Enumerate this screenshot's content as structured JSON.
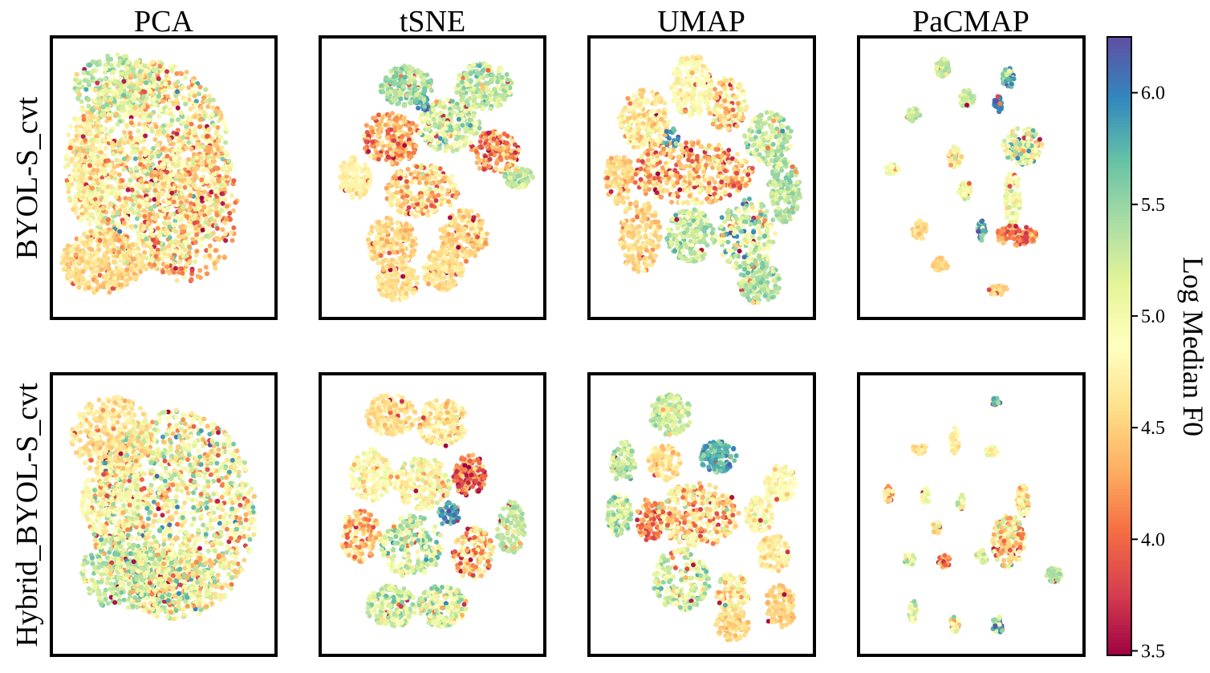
{
  "figure": {
    "column_titles": [
      "PCA",
      "tSNE",
      "UMAP",
      "PaCMAP"
    ],
    "row_titles": [
      "BYOL-S_cvt",
      "Hybrid_BYOL-S_cvt"
    ]
  },
  "colorbar": {
    "label": "Log Median F0",
    "colormap": "Spectral",
    "min": 3.48,
    "max": 6.25,
    "ticks": [
      3.5,
      4.0,
      4.5,
      5.0,
      5.5,
      6.0
    ],
    "tick_labels": [
      "3.5",
      "4.0",
      "4.5",
      "5.0",
      "5.5",
      "6.0"
    ],
    "colors": [
      "#9e0142",
      "#d53e4f",
      "#f46d43",
      "#fdae61",
      "#fee08b",
      "#ffffbf",
      "#e6f598",
      "#abdda4",
      "#66c2a5",
      "#3288bd",
      "#5e4fa2"
    ]
  },
  "chart_data": [
    {
      "type": "scatter",
      "row": "BYOL-S_cvt",
      "column": "PCA",
      "title": "PCA",
      "xlim": [
        0,
        1
      ],
      "ylim": [
        0,
        1
      ],
      "grid": false,
      "clusters": [
        {
          "x": 0.45,
          "y": 0.55,
          "rx": 0.38,
          "ry": 0.4,
          "n": 1500,
          "mean": 4.8,
          "sd": 0.4
        },
        {
          "x": 0.2,
          "y": 0.18,
          "rx": 0.2,
          "ry": 0.12,
          "n": 380,
          "mean": 4.55,
          "sd": 0.12
        },
        {
          "x": 0.28,
          "y": 0.85,
          "rx": 0.22,
          "ry": 0.12,
          "n": 280,
          "mean": 5.3,
          "sd": 0.2
        },
        {
          "x": 0.12,
          "y": 0.55,
          "rx": 0.1,
          "ry": 0.22,
          "n": 250,
          "mean": 4.7,
          "sd": 0.2
        },
        {
          "x": 0.62,
          "y": 0.4,
          "rx": 0.25,
          "ry": 0.3,
          "n": 400,
          "mean": 4.35,
          "sd": 0.3
        }
      ]
    },
    {
      "type": "scatter",
      "row": "BYOL-S_cvt",
      "column": "tSNE",
      "title": "tSNE",
      "xlim": [
        0,
        1
      ],
      "ylim": [
        0,
        1
      ],
      "grid": false,
      "clusters": [
        {
          "x": 0.37,
          "y": 0.85,
          "rx": 0.13,
          "ry": 0.08,
          "n": 200,
          "mean": 5.4,
          "sd": 0.15
        },
        {
          "x": 0.75,
          "y": 0.85,
          "rx": 0.14,
          "ry": 0.09,
          "n": 200,
          "mean": 5.3,
          "sd": 0.2
        },
        {
          "x": 0.3,
          "y": 0.65,
          "rx": 0.14,
          "ry": 0.1,
          "n": 220,
          "mean": 4.3,
          "sd": 0.3
        },
        {
          "x": 0.58,
          "y": 0.7,
          "rx": 0.15,
          "ry": 0.1,
          "n": 220,
          "mean": 5.2,
          "sd": 0.3
        },
        {
          "x": 0.8,
          "y": 0.6,
          "rx": 0.12,
          "ry": 0.08,
          "n": 150,
          "mean": 4.2,
          "sd": 0.35
        },
        {
          "x": 0.12,
          "y": 0.5,
          "rx": 0.08,
          "ry": 0.08,
          "n": 140,
          "mean": 4.75,
          "sd": 0.08
        },
        {
          "x": 0.92,
          "y": 0.5,
          "rx": 0.07,
          "ry": 0.04,
          "n": 80,
          "mean": 5.3,
          "sd": 0.15
        },
        {
          "x": 0.45,
          "y": 0.45,
          "rx": 0.18,
          "ry": 0.1,
          "n": 240,
          "mean": 4.6,
          "sd": 0.3
        },
        {
          "x": 0.3,
          "y": 0.25,
          "rx": 0.12,
          "ry": 0.1,
          "n": 180,
          "mean": 4.55,
          "sd": 0.15
        },
        {
          "x": 0.65,
          "y": 0.28,
          "rx": 0.12,
          "ry": 0.1,
          "n": 180,
          "mean": 4.55,
          "sd": 0.15
        },
        {
          "x": 0.33,
          "y": 0.1,
          "rx": 0.1,
          "ry": 0.07,
          "n": 150,
          "mean": 4.6,
          "sd": 0.1
        },
        {
          "x": 0.55,
          "y": 0.15,
          "rx": 0.1,
          "ry": 0.08,
          "n": 150,
          "mean": 4.6,
          "sd": 0.1
        },
        {
          "x": 0.45,
          "y": 0.78,
          "rx": 0.04,
          "ry": 0.03,
          "n": 30,
          "mean": 5.9,
          "sd": 0.15
        }
      ]
    },
    {
      "type": "scatter",
      "row": "BYOL-S_cvt",
      "column": "UMAP",
      "title": "UMAP",
      "xlim": [
        0,
        1
      ],
      "ylim": [
        0,
        1
      ],
      "grid": false,
      "clusters": [
        {
          "x": 0.22,
          "y": 0.72,
          "rx": 0.12,
          "ry": 0.12,
          "n": 220,
          "mean": 4.7,
          "sd": 0.2
        },
        {
          "x": 0.45,
          "y": 0.85,
          "rx": 0.1,
          "ry": 0.12,
          "n": 200,
          "mean": 4.85,
          "sd": 0.15
        },
        {
          "x": 0.62,
          "y": 0.78,
          "rx": 0.1,
          "ry": 0.1,
          "n": 160,
          "mean": 4.6,
          "sd": 0.3
        },
        {
          "x": 0.82,
          "y": 0.65,
          "rx": 0.12,
          "ry": 0.1,
          "n": 160,
          "mean": 5.3,
          "sd": 0.2
        },
        {
          "x": 0.1,
          "y": 0.5,
          "rx": 0.07,
          "ry": 0.1,
          "n": 120,
          "mean": 4.55,
          "sd": 0.1
        },
        {
          "x": 0.45,
          "y": 0.52,
          "rx": 0.3,
          "ry": 0.12,
          "n": 420,
          "mean": 4.4,
          "sd": 0.4
        },
        {
          "x": 0.9,
          "y": 0.45,
          "rx": 0.08,
          "ry": 0.12,
          "n": 140,
          "mean": 5.4,
          "sd": 0.15
        },
        {
          "x": 0.2,
          "y": 0.28,
          "rx": 0.1,
          "ry": 0.14,
          "n": 180,
          "mean": 4.55,
          "sd": 0.12
        },
        {
          "x": 0.45,
          "y": 0.28,
          "rx": 0.12,
          "ry": 0.1,
          "n": 180,
          "mean": 5.3,
          "sd": 0.2
        },
        {
          "x": 0.72,
          "y": 0.28,
          "rx": 0.14,
          "ry": 0.14,
          "n": 220,
          "mean": 5.2,
          "sd": 0.4
        },
        {
          "x": 0.78,
          "y": 0.1,
          "rx": 0.1,
          "ry": 0.08,
          "n": 140,
          "mean": 5.4,
          "sd": 0.15
        },
        {
          "x": 0.35,
          "y": 0.65,
          "rx": 0.04,
          "ry": 0.04,
          "n": 25,
          "mean": 5.9,
          "sd": 0.15
        }
      ]
    },
    {
      "type": "scatter",
      "row": "BYOL-S_cvt",
      "column": "PaCMAP",
      "title": "PaCMAP",
      "xlim": [
        0,
        1
      ],
      "ylim": [
        0,
        1
      ],
      "grid": false,
      "clusters": [
        {
          "x": 0.36,
          "y": 0.92,
          "rx": 0.035,
          "ry": 0.035,
          "n": 50,
          "mean": 5.3,
          "sd": 0.15
        },
        {
          "x": 0.68,
          "y": 0.88,
          "rx": 0.03,
          "ry": 0.04,
          "n": 50,
          "mean": 5.5,
          "sd": 0.4
        },
        {
          "x": 0.63,
          "y": 0.78,
          "rx": 0.02,
          "ry": 0.03,
          "n": 30,
          "mean": 5.95,
          "sd": 0.15
        },
        {
          "x": 0.48,
          "y": 0.8,
          "rx": 0.035,
          "ry": 0.035,
          "n": 45,
          "mean": 5.3,
          "sd": 0.1
        },
        {
          "x": 0.22,
          "y": 0.74,
          "rx": 0.035,
          "ry": 0.025,
          "n": 40,
          "mean": 5.2,
          "sd": 0.2
        },
        {
          "x": 0.42,
          "y": 0.58,
          "rx": 0.035,
          "ry": 0.04,
          "n": 45,
          "mean": 4.7,
          "sd": 0.3
        },
        {
          "x": 0.75,
          "y": 0.62,
          "rx": 0.1,
          "ry": 0.07,
          "n": 150,
          "mean": 5.0,
          "sd": 0.45
        },
        {
          "x": 0.12,
          "y": 0.53,
          "rx": 0.035,
          "ry": 0.02,
          "n": 30,
          "mean": 5.0,
          "sd": 0.1
        },
        {
          "x": 0.47,
          "y": 0.45,
          "rx": 0.035,
          "ry": 0.035,
          "n": 40,
          "mean": 5.0,
          "sd": 0.2
        },
        {
          "x": 0.7,
          "y": 0.42,
          "rx": 0.04,
          "ry": 0.1,
          "n": 80,
          "mean": 5.0,
          "sd": 0.15
        },
        {
          "x": 0.72,
          "y": 0.28,
          "rx": 0.1,
          "ry": 0.04,
          "n": 110,
          "mean": 4.1,
          "sd": 0.25
        },
        {
          "x": 0.25,
          "y": 0.3,
          "rx": 0.035,
          "ry": 0.04,
          "n": 45,
          "mean": 4.6,
          "sd": 0.1
        },
        {
          "x": 0.55,
          "y": 0.3,
          "rx": 0.02,
          "ry": 0.04,
          "n": 25,
          "mean": 5.8,
          "sd": 0.3
        },
        {
          "x": 0.35,
          "y": 0.17,
          "rx": 0.04,
          "ry": 0.025,
          "n": 35,
          "mean": 4.55,
          "sd": 0.08
        },
        {
          "x": 0.63,
          "y": 0.07,
          "rx": 0.045,
          "ry": 0.02,
          "n": 35,
          "mean": 4.55,
          "sd": 0.08
        }
      ]
    },
    {
      "type": "scatter",
      "row": "Hybrid_BYOL-S_cvt",
      "column": "PCA",
      "title": "",
      "xlim": [
        0,
        1
      ],
      "ylim": [
        0,
        1
      ],
      "grid": false,
      "clusters": [
        {
          "x": 0.25,
          "y": 0.8,
          "rx": 0.2,
          "ry": 0.15,
          "n": 350,
          "mean": 4.6,
          "sd": 0.15
        },
        {
          "x": 0.25,
          "y": 0.55,
          "rx": 0.15,
          "ry": 0.15,
          "n": 250,
          "mean": 4.85,
          "sd": 0.15
        },
        {
          "x": 0.55,
          "y": 0.5,
          "rx": 0.4,
          "ry": 0.4,
          "n": 1500,
          "mean": 4.9,
          "sd": 0.45
        },
        {
          "x": 0.3,
          "y": 0.28,
          "rx": 0.2,
          "ry": 0.15,
          "n": 300,
          "mean": 5.3,
          "sd": 0.2
        },
        {
          "x": 0.55,
          "y": 0.25,
          "rx": 0.2,
          "ry": 0.12,
          "n": 300,
          "mean": 5.2,
          "sd": 0.45
        }
      ]
    },
    {
      "type": "scatter",
      "row": "Hybrid_BYOL-S_cvt",
      "column": "tSNE",
      "title": "",
      "xlim": [
        0,
        1
      ],
      "ylim": [
        0,
        1
      ],
      "grid": false,
      "clusters": [
        {
          "x": 0.3,
          "y": 0.88,
          "rx": 0.12,
          "ry": 0.08,
          "n": 180,
          "mean": 4.6,
          "sd": 0.12
        },
        {
          "x": 0.55,
          "y": 0.85,
          "rx": 0.12,
          "ry": 0.09,
          "n": 180,
          "mean": 4.65,
          "sd": 0.2
        },
        {
          "x": 0.2,
          "y": 0.65,
          "rx": 0.1,
          "ry": 0.1,
          "n": 150,
          "mean": 4.8,
          "sd": 0.2
        },
        {
          "x": 0.45,
          "y": 0.62,
          "rx": 0.14,
          "ry": 0.1,
          "n": 200,
          "mean": 4.85,
          "sd": 0.25
        },
        {
          "x": 0.68,
          "y": 0.65,
          "rx": 0.08,
          "ry": 0.08,
          "n": 120,
          "mean": 4.0,
          "sd": 0.3
        },
        {
          "x": 0.88,
          "y": 0.45,
          "rx": 0.07,
          "ry": 0.1,
          "n": 120,
          "mean": 5.3,
          "sd": 0.1
        },
        {
          "x": 0.15,
          "y": 0.42,
          "rx": 0.1,
          "ry": 0.1,
          "n": 150,
          "mean": 4.5,
          "sd": 0.3
        },
        {
          "x": 0.4,
          "y": 0.38,
          "rx": 0.15,
          "ry": 0.12,
          "n": 220,
          "mean": 5.2,
          "sd": 0.3
        },
        {
          "x": 0.58,
          "y": 0.5,
          "rx": 0.05,
          "ry": 0.05,
          "n": 50,
          "mean": 5.9,
          "sd": 0.2
        },
        {
          "x": 0.7,
          "y": 0.35,
          "rx": 0.1,
          "ry": 0.1,
          "n": 150,
          "mean": 4.5,
          "sd": 0.4
        },
        {
          "x": 0.3,
          "y": 0.15,
          "rx": 0.12,
          "ry": 0.08,
          "n": 180,
          "mean": 5.2,
          "sd": 0.2
        },
        {
          "x": 0.55,
          "y": 0.15,
          "rx": 0.12,
          "ry": 0.08,
          "n": 180,
          "mean": 5.1,
          "sd": 0.3
        }
      ]
    },
    {
      "type": "scatter",
      "row": "Hybrid_BYOL-S_cvt",
      "column": "UMAP",
      "title": "",
      "xlim": [
        0,
        1
      ],
      "ylim": [
        0,
        1
      ],
      "grid": false,
      "clusters": [
        {
          "x": 0.35,
          "y": 0.88,
          "rx": 0.1,
          "ry": 0.08,
          "n": 160,
          "mean": 5.25,
          "sd": 0.15
        },
        {
          "x": 0.12,
          "y": 0.7,
          "rx": 0.06,
          "ry": 0.08,
          "n": 90,
          "mean": 5.3,
          "sd": 0.15
        },
        {
          "x": 0.32,
          "y": 0.7,
          "rx": 0.08,
          "ry": 0.07,
          "n": 100,
          "mean": 4.6,
          "sd": 0.15
        },
        {
          "x": 0.58,
          "y": 0.72,
          "rx": 0.09,
          "ry": 0.06,
          "n": 120,
          "mean": 5.8,
          "sd": 0.15
        },
        {
          "x": 0.88,
          "y": 0.62,
          "rx": 0.08,
          "ry": 0.07,
          "n": 110,
          "mean": 4.85,
          "sd": 0.15
        },
        {
          "x": 0.1,
          "y": 0.5,
          "rx": 0.06,
          "ry": 0.08,
          "n": 100,
          "mean": 5.3,
          "sd": 0.25
        },
        {
          "x": 0.25,
          "y": 0.48,
          "rx": 0.07,
          "ry": 0.08,
          "n": 90,
          "mean": 4.05,
          "sd": 0.2
        },
        {
          "x": 0.48,
          "y": 0.5,
          "rx": 0.2,
          "ry": 0.12,
          "n": 320,
          "mean": 4.6,
          "sd": 0.4
        },
        {
          "x": 0.78,
          "y": 0.5,
          "rx": 0.07,
          "ry": 0.07,
          "n": 90,
          "mean": 4.9,
          "sd": 0.2
        },
        {
          "x": 0.85,
          "y": 0.35,
          "rx": 0.08,
          "ry": 0.07,
          "n": 100,
          "mean": 4.7,
          "sd": 0.15
        },
        {
          "x": 0.4,
          "y": 0.25,
          "rx": 0.14,
          "ry": 0.12,
          "n": 200,
          "mean": 5.2,
          "sd": 0.3
        },
        {
          "x": 0.65,
          "y": 0.2,
          "rx": 0.08,
          "ry": 0.08,
          "n": 100,
          "mean": 4.8,
          "sd": 0.3
        },
        {
          "x": 0.65,
          "y": 0.08,
          "rx": 0.08,
          "ry": 0.06,
          "n": 100,
          "mean": 4.55,
          "sd": 0.1
        },
        {
          "x": 0.88,
          "y": 0.15,
          "rx": 0.08,
          "ry": 0.08,
          "n": 110,
          "mean": 4.55,
          "sd": 0.1
        }
      ]
    },
    {
      "type": "scatter",
      "row": "Hybrid_BYOL-S_cvt",
      "column": "PaCMAP",
      "title": "",
      "xlim": [
        0,
        1
      ],
      "ylim": [
        0,
        1
      ],
      "grid": false,
      "clusters": [
        {
          "x": 0.62,
          "y": 0.93,
          "rx": 0.02,
          "ry": 0.015,
          "n": 20,
          "mean": 5.8,
          "sd": 0.3
        },
        {
          "x": 0.42,
          "y": 0.78,
          "rx": 0.02,
          "ry": 0.05,
          "n": 40,
          "mean": 4.75,
          "sd": 0.1
        },
        {
          "x": 0.25,
          "y": 0.75,
          "rx": 0.035,
          "ry": 0.02,
          "n": 35,
          "mean": 4.6,
          "sd": 0.1
        },
        {
          "x": 0.6,
          "y": 0.74,
          "rx": 0.03,
          "ry": 0.02,
          "n": 30,
          "mean": 4.85,
          "sd": 0.2
        },
        {
          "x": 0.1,
          "y": 0.58,
          "rx": 0.025,
          "ry": 0.03,
          "n": 35,
          "mean": 4.5,
          "sd": 0.3
        },
        {
          "x": 0.28,
          "y": 0.57,
          "rx": 0.02,
          "ry": 0.03,
          "n": 30,
          "mean": 5.0,
          "sd": 0.15
        },
        {
          "x": 0.45,
          "y": 0.55,
          "rx": 0.02,
          "ry": 0.03,
          "n": 30,
          "mean": 5.2,
          "sd": 0.2
        },
        {
          "x": 0.75,
          "y": 0.55,
          "rx": 0.03,
          "ry": 0.06,
          "n": 60,
          "mean": 4.7,
          "sd": 0.3
        },
        {
          "x": 0.33,
          "y": 0.45,
          "rx": 0.02,
          "ry": 0.025,
          "n": 25,
          "mean": 4.9,
          "sd": 0.2
        },
        {
          "x": 0.68,
          "y": 0.4,
          "rx": 0.08,
          "ry": 0.1,
          "n": 160,
          "mean": 4.6,
          "sd": 0.5
        },
        {
          "x": 0.2,
          "y": 0.33,
          "rx": 0.025,
          "ry": 0.025,
          "n": 25,
          "mean": 5.1,
          "sd": 0.3
        },
        {
          "x": 0.37,
          "y": 0.32,
          "rx": 0.03,
          "ry": 0.025,
          "n": 30,
          "mean": 4.2,
          "sd": 0.3
        },
        {
          "x": 0.55,
          "y": 0.34,
          "rx": 0.03,
          "ry": 0.025,
          "n": 30,
          "mean": 5.1,
          "sd": 0.2
        },
        {
          "x": 0.9,
          "y": 0.27,
          "rx": 0.04,
          "ry": 0.03,
          "n": 40,
          "mean": 5.4,
          "sd": 0.1
        },
        {
          "x": 0.22,
          "y": 0.13,
          "rx": 0.02,
          "ry": 0.04,
          "n": 30,
          "mean": 5.2,
          "sd": 0.2
        },
        {
          "x": 0.42,
          "y": 0.08,
          "rx": 0.025,
          "ry": 0.03,
          "n": 30,
          "mean": 5.0,
          "sd": 0.4
        },
        {
          "x": 0.63,
          "y": 0.08,
          "rx": 0.03,
          "ry": 0.03,
          "n": 35,
          "mean": 5.6,
          "sd": 0.4
        }
      ]
    }
  ]
}
